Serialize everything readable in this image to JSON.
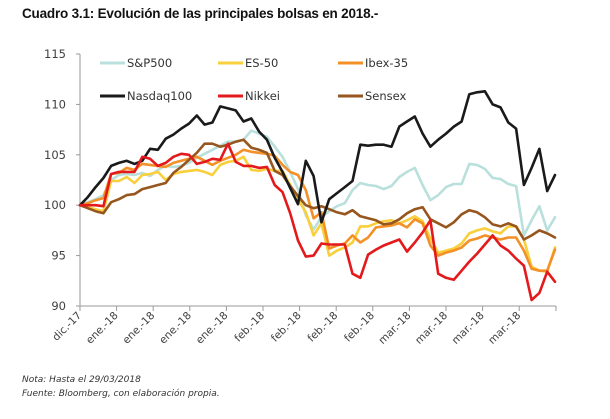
{
  "title": "Cuadro 3.1: Evolución de las principales bolsas en 2018.-",
  "notes": {
    "nota": "Nota: Hasta el 29/03/2018",
    "fuente": "Fuente: Bloomberg, con elaboración propia."
  },
  "chart_data": {
    "type": "line",
    "title": "Cuadro 3.1: Evolución de las principales bolsas en 2018.-",
    "xlabel": "",
    "ylabel": "",
    "ylim": [
      90,
      115
    ],
    "yticks": [
      90,
      95,
      100,
      105,
      110,
      115
    ],
    "grid": false,
    "legend": "top",
    "x_tick_labels": [
      "dic.-17",
      "ene.-18",
      "ene.-18",
      "ene.-18",
      "ene.-18",
      "feb.-18",
      "feb.-18",
      "feb.-18",
      "feb.-18",
      "mar.-18",
      "mar.-18",
      "mar.-18",
      "mar.-18"
    ],
    "n_points": 62,
    "series": [
      {
        "name": "S&P500",
        "color": "#b9e0dc",
        "values": [
          100,
          100.3,
          100.6,
          101.0,
          102.5,
          103.0,
          103.1,
          103.0,
          103.2,
          102.9,
          103.5,
          103.9,
          103.8,
          103.9,
          104.2,
          104.7,
          105.1,
          105.5,
          105.9,
          106.3,
          106.3,
          106.5,
          107.4,
          107.1,
          106.8,
          105.8,
          104.8,
          103.3,
          101.6,
          99.0,
          97.6,
          98.8,
          99.4,
          99.9,
          100.2,
          101.5,
          102.2,
          102.0,
          101.9,
          101.6,
          101.9,
          102.8,
          103.3,
          103.7,
          102.0,
          100.5,
          101.0,
          101.8,
          102.1,
          102.1,
          104.1,
          104.0,
          103.6,
          102.7,
          102.6,
          102.1,
          101.9,
          97.0,
          98.5,
          99.9,
          97.5,
          98.8
        ],
        "key": "sp500"
      },
      {
        "name": "ES-50",
        "color": "#f9cf3b",
        "values": [
          100,
          99.8,
          99.6,
          99.4,
          102.4,
          102.4,
          102.8,
          102.2,
          103.0,
          103.1,
          103.3,
          102.5,
          103.1,
          103.3,
          103.4,
          103.5,
          103.3,
          103.0,
          104.0,
          104.3,
          104.4,
          104.8,
          103.5,
          103.4,
          103.6,
          103.4,
          103.4,
          102.0,
          100.6,
          99.3,
          97.0,
          98.2,
          95.0,
          95.5,
          95.8,
          96.3,
          97.9,
          97.9,
          98.2,
          98.4,
          98.5,
          98.2,
          98.5,
          98.9,
          98.4,
          96.7,
          95.3,
          95.5,
          95.7,
          96.2,
          97.2,
          97.5,
          97.7,
          97.4,
          97.2,
          97.9,
          97.9,
          96.6,
          93.9,
          93.5,
          93.4,
          95.8
        ],
        "key": "es50"
      },
      {
        "name": "Ibex-35",
        "color": "#f39026",
        "values": [
          100,
          100.2,
          100.5,
          100.7,
          103.1,
          103.2,
          103.7,
          103.5,
          104.1,
          104.0,
          103.9,
          103.8,
          104.2,
          104.4,
          104.6,
          104.8,
          104.4,
          104.0,
          104.4,
          104.7,
          105.0,
          105.5,
          105.3,
          105.2,
          105.1,
          104.9,
          104.0,
          103.3,
          103.0,
          101.5,
          98.7,
          99.3,
          95.7,
          96.0,
          96.2,
          97.0,
          96.3,
          96.8,
          97.8,
          97.9,
          98.0,
          98.2,
          97.8,
          98.6,
          98.2,
          96.0,
          95.0,
          95.3,
          95.5,
          95.8,
          96.5,
          96.7,
          97.0,
          96.8,
          96.6,
          96.8,
          96.8,
          95.5,
          93.7,
          93.5,
          93.5,
          95.6
        ],
        "key": "ibex35"
      },
      {
        "name": "Nasdaq100",
        "color": "#1a1a1a",
        "values": [
          100,
          100.8,
          101.8,
          102.7,
          103.9,
          104.2,
          104.4,
          104.1,
          104.4,
          105.6,
          105.5,
          106.6,
          107.0,
          107.6,
          108.1,
          108.9,
          108.0,
          108.2,
          109.8,
          109.6,
          109.4,
          108.3,
          108.6,
          107.3,
          106.5,
          104.7,
          103.3,
          101.7,
          100.1,
          104.4,
          102.9,
          98.3,
          100.6,
          101.2,
          101.8,
          102.4,
          106.0,
          105.9,
          106.0,
          106.0,
          105.8,
          107.8,
          108.3,
          108.8,
          107.1,
          105.8,
          106.5,
          107.1,
          107.8,
          108.3,
          111.0,
          111.2,
          111.3,
          110.0,
          109.7,
          108.2,
          107.6,
          102.0,
          103.7,
          105.6,
          101.4,
          103.0
        ],
        "key": "nasdaq100"
      },
      {
        "name": "Nikkei",
        "color": "#e3191c",
        "values": [
          100,
          100,
          100,
          99.9,
          103.1,
          103.3,
          103.3,
          103.3,
          104.8,
          104.6,
          103.9,
          104.2,
          104.8,
          105.1,
          105.0,
          104.1,
          104.3,
          104.6,
          104.5,
          106.1,
          104.3,
          103.9,
          103.9,
          103.7,
          103.8,
          102.0,
          101.3,
          99.2,
          96.5,
          94.9,
          95.0,
          96.2,
          96.1,
          96.1,
          96.1,
          93.2,
          92.8,
          95.1,
          95.6,
          96.0,
          96.3,
          96.6,
          95.4,
          96.3,
          97.3,
          98.5,
          93.2,
          92.8,
          92.6,
          93.5,
          94.4,
          95.2,
          96.1,
          97.0,
          96.0,
          95.5,
          94.7,
          94.0,
          90.6,
          91.3,
          93.4,
          92.4
        ],
        "key": "nikkei"
      },
      {
        "name": "Sensex",
        "color": "#96561e",
        "values": [
          100,
          99.7,
          99.4,
          99.2,
          100.3,
          100.6,
          101.0,
          101.1,
          101.6,
          101.8,
          102.0,
          102.2,
          103.2,
          103.8,
          104.5,
          105.2,
          106.1,
          106.1,
          105.8,
          106.0,
          106.3,
          106.5,
          105.7,
          105.5,
          105.2,
          103.4,
          103.0,
          101.9,
          100.9,
          100.0,
          99.7,
          99.9,
          99.6,
          99.3,
          99.1,
          99.5,
          98.9,
          98.7,
          98.5,
          98.1,
          98.2,
          98.6,
          99.2,
          99.6,
          99.8,
          98.6,
          98.2,
          97.8,
          98.3,
          99.1,
          99.5,
          99.3,
          98.8,
          98.1,
          97.9,
          98.2,
          97.9,
          96.6,
          97.0,
          97.5,
          97.2,
          96.8
        ],
        "key": "sensex"
      }
    ]
  }
}
